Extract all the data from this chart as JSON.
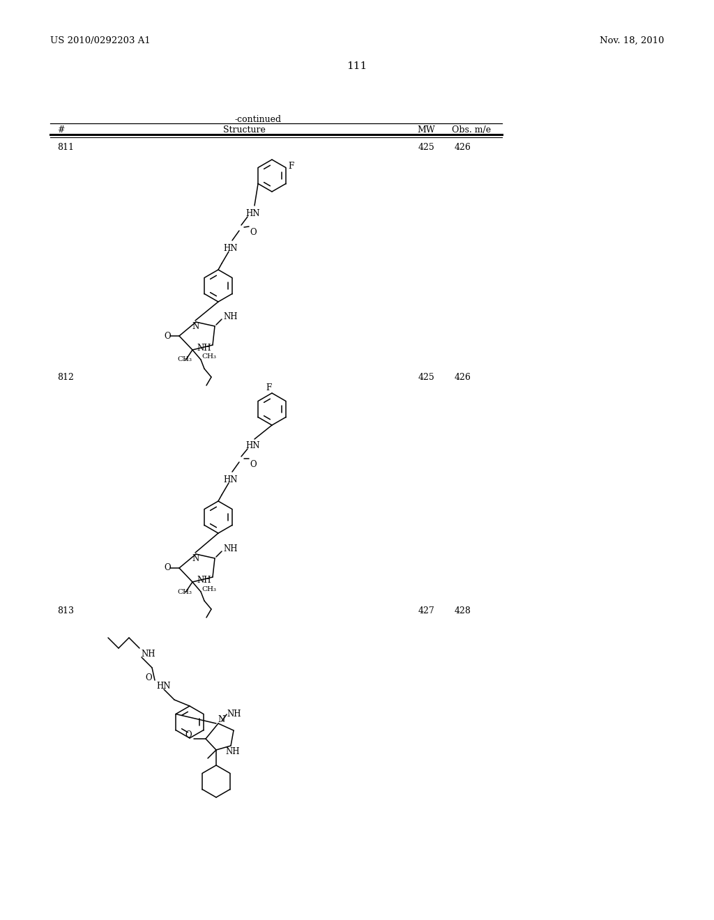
{
  "background_color": "#ffffff",
  "page_number": "111",
  "header_left": "US 2010/0292203 A1",
  "header_right": "Nov. 18, 2010",
  "table_label": "-continued",
  "col_hash": "#",
  "col_structure": "Structure",
  "col_mw": "MW",
  "col_obs": "Obs. m/e",
  "compounds": [
    {
      "id": "811",
      "mw": "425",
      "obs": "426"
    },
    {
      "id": "812",
      "mw": "425",
      "obs": "426"
    },
    {
      "id": "813",
      "mw": "427",
      "obs": "428"
    }
  ]
}
